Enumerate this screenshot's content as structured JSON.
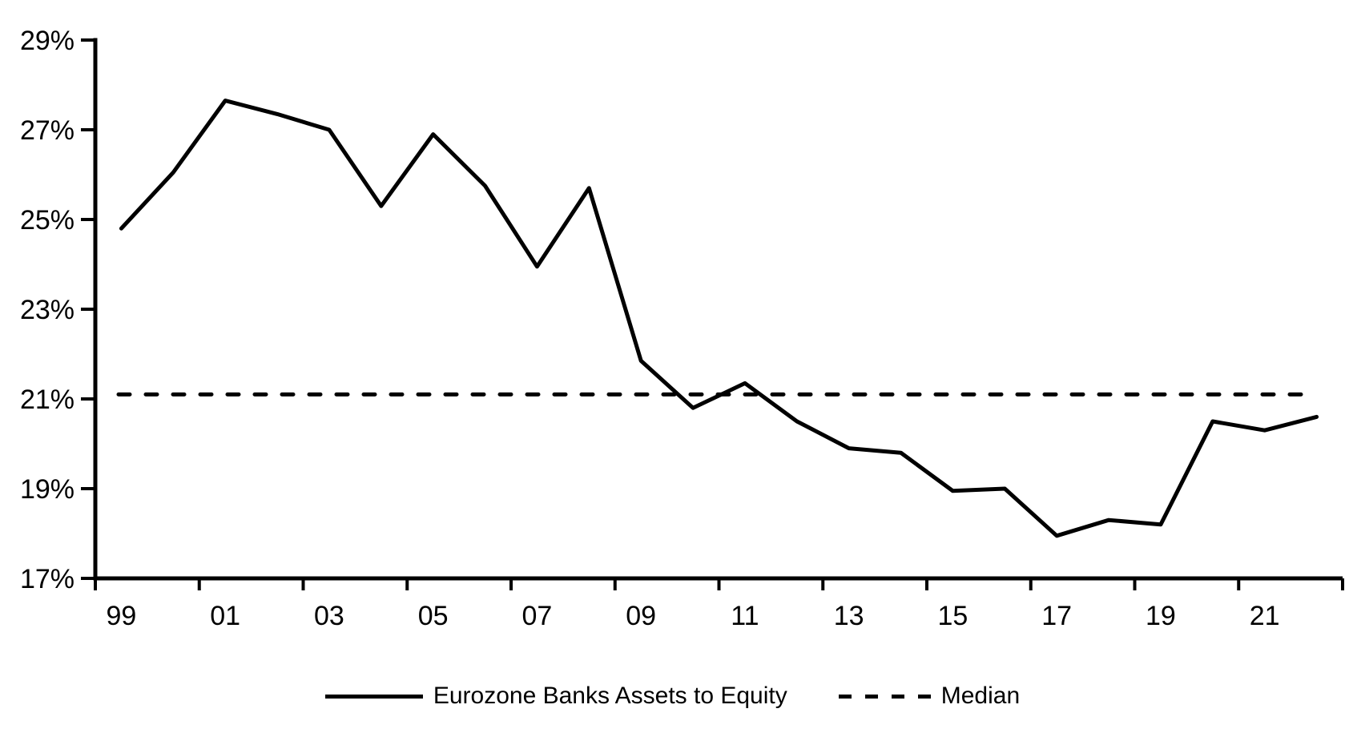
{
  "chart_data": {
    "type": "line",
    "x": [
      "99",
      "00",
      "01",
      "02",
      "03",
      "04",
      "05",
      "06",
      "07",
      "08",
      "09",
      "10",
      "11",
      "12",
      "13",
      "14",
      "15",
      "16",
      "17",
      "18",
      "19",
      "20",
      "21",
      "22"
    ],
    "series": [
      {
        "name": "Eurozone Banks Assets to Equity",
        "style": "solid",
        "values": [
          24.8,
          26.05,
          27.65,
          27.35,
          27.0,
          25.3,
          26.9,
          25.75,
          23.95,
          25.7,
          21.85,
          20.8,
          21.35,
          20.5,
          19.9,
          19.8,
          18.95,
          19.0,
          17.95,
          18.3,
          18.2,
          20.5,
          20.3,
          20.6
        ]
      },
      {
        "name": "Median",
        "style": "dashed",
        "constant_value": 21.1
      }
    ],
    "title": "",
    "xlabel": "",
    "ylabel": "",
    "ylim": [
      17,
      29
    ],
    "ytick_values": [
      17,
      19,
      21,
      23,
      25,
      27,
      29
    ],
    "ytick_labels": [
      "17%",
      "19%",
      "21%",
      "23%",
      "25%",
      "27%",
      "29%"
    ],
    "xtick_labels": [
      "99",
      "01",
      "03",
      "05",
      "07",
      "09",
      "11",
      "13",
      "15",
      "17",
      "19",
      "21"
    ],
    "grid": false,
    "legend_position": "bottom-center",
    "colors": {
      "line": "#000000",
      "median": "#000000",
      "axis": "#000000",
      "text": "#000000",
      "background": "#ffffff"
    }
  }
}
